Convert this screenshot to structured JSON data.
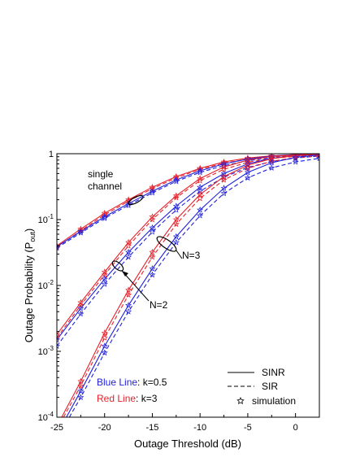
{
  "chart_data": {
    "type": "line",
    "xlabel": "Outage Threshold (dB)",
    "ylabel_main": "Outage Probability (P",
    "ylabel_sub": "out",
    "ylabel_close": ")",
    "xlim": [
      -25,
      2.5
    ],
    "ylim": [
      0.0001,
      1
    ],
    "yscale": "log",
    "x_ticks": [
      -25,
      -20,
      -15,
      -10,
      -5,
      0
    ],
    "x_tick_labels": [
      "-25",
      "-20",
      "-15",
      "-10",
      "-5",
      "0"
    ],
    "y_ticks": [
      0.0001,
      0.001,
      0.01,
      0.1,
      1
    ],
    "y_tick_labels": [
      {
        "base": "10",
        "exp": "-4"
      },
      {
        "base": "10",
        "exp": "-3"
      },
      {
        "base": "10",
        "exp": "-2"
      },
      {
        "base": "10",
        "exp": "-1"
      },
      {
        "base": "1",
        "exp": ""
      }
    ],
    "grid": false,
    "colors": {
      "blue": "#1f1fdc",
      "red": "#e8202a"
    },
    "annotations": {
      "single_channel": [
        "single",
        "channel"
      ],
      "n3": "N=3",
      "n2": "N=2"
    },
    "legend": {
      "placement": "bottom-right",
      "items": [
        {
          "label": "SINR",
          "style": "solid"
        },
        {
          "label": "SIR",
          "style": "dashed"
        },
        {
          "label": "simulation",
          "style": "marker"
        }
      ]
    },
    "color_key": {
      "blue_label": "Blue Line",
      "blue_value": ": k=0.5",
      "red_label": "Red Line",
      "red_value": ": k=3"
    },
    "sim_x": [
      -25,
      -22.5,
      -20,
      -17.5,
      -15,
      -12.5,
      -10,
      -7.5,
      -5,
      -2.5,
      0,
      2.5
    ],
    "series": [
      {
        "N": 1,
        "k": 3,
        "color": "red",
        "style": "solid",
        "x": [
          -25,
          -22.5,
          -20,
          -17.5,
          -15,
          -12.5,
          -10,
          -7.5,
          -5,
          -2.5,
          0,
          2.5
        ],
        "y": [
          0.04,
          0.072,
          0.125,
          0.2,
          0.31,
          0.45,
          0.6,
          0.75,
          0.86,
          0.93,
          0.97,
          0.99
        ]
      },
      {
        "N": 1,
        "k": 3,
        "color": "red",
        "style": "dashed",
        "x": [
          -25,
          -22.5,
          -20,
          -17.5,
          -15,
          -12.5,
          -10,
          -7.5,
          -5,
          -2.5,
          0,
          2.5
        ],
        "y": [
          0.038,
          0.068,
          0.118,
          0.19,
          0.295,
          0.43,
          0.58,
          0.72,
          0.83,
          0.9,
          0.94,
          0.96
        ]
      },
      {
        "N": 1,
        "k": 0.5,
        "color": "blue",
        "style": "solid",
        "x": [
          -25,
          -22.5,
          -20,
          -17.5,
          -15,
          -12.5,
          -10,
          -7.5,
          -5,
          -2.5,
          0,
          2.5
        ],
        "y": [
          0.039,
          0.066,
          0.11,
          0.175,
          0.27,
          0.4,
          0.55,
          0.7,
          0.83,
          0.92,
          0.97,
          0.99
        ]
      },
      {
        "N": 1,
        "k": 0.5,
        "color": "blue",
        "style": "dashed",
        "x": [
          -25,
          -22.5,
          -20,
          -17.5,
          -15,
          -12.5,
          -10,
          -7.5,
          -5,
          -2.5,
          0,
          2.5
        ],
        "y": [
          0.037,
          0.063,
          0.105,
          0.165,
          0.255,
          0.38,
          0.52,
          0.66,
          0.78,
          0.87,
          0.92,
          0.95
        ]
      },
      {
        "N": 2,
        "k": 3,
        "color": "red",
        "style": "solid",
        "x": [
          -25,
          -22.5,
          -20,
          -17.5,
          -15,
          -12.5,
          -10,
          -7.5,
          -5,
          -2.5,
          0,
          2.5
        ],
        "y": [
          0.0018,
          0.0055,
          0.016,
          0.045,
          0.11,
          0.23,
          0.42,
          0.63,
          0.8,
          0.91,
          0.96,
          0.985
        ]
      },
      {
        "N": 2,
        "k": 3,
        "color": "red",
        "style": "dashed",
        "x": [
          -25,
          -22.5,
          -20,
          -17.5,
          -15,
          -12.5,
          -10,
          -7.5,
          -5,
          -2.5,
          0,
          2.5
        ],
        "y": [
          0.0016,
          0.005,
          0.0145,
          0.04,
          0.1,
          0.215,
          0.39,
          0.58,
          0.74,
          0.85,
          0.91,
          0.94
        ]
      },
      {
        "N": 2,
        "k": 0.5,
        "color": "blue",
        "style": "solid",
        "x": [
          -25,
          -22.5,
          -20,
          -17.5,
          -15,
          -12.5,
          -10,
          -7.5,
          -5,
          -2.5,
          0,
          2.5
        ],
        "y": [
          0.0015,
          0.0045,
          0.0125,
          0.032,
          0.075,
          0.16,
          0.31,
          0.5,
          0.7,
          0.85,
          0.94,
          0.98
        ]
      },
      {
        "N": 2,
        "k": 0.5,
        "color": "blue",
        "style": "dashed",
        "x": [
          -25,
          -22.5,
          -20,
          -17.5,
          -15,
          -12.5,
          -10,
          -7.5,
          -5,
          -2.5,
          0,
          2.5
        ],
        "y": [
          0.0012,
          0.0037,
          0.0105,
          0.027,
          0.065,
          0.14,
          0.27,
          0.44,
          0.62,
          0.76,
          0.86,
          0.92
        ]
      },
      {
        "N": 3,
        "k": 3,
        "color": "red",
        "style": "solid",
        "x": [
          -24.5,
          -22.5,
          -20,
          -17.5,
          -15,
          -12.5,
          -10,
          -7.5,
          -5,
          -2.5,
          0,
          2.5
        ],
        "y": [
          0.0001,
          0.00035,
          0.0019,
          0.0085,
          0.032,
          0.1,
          0.24,
          0.45,
          0.67,
          0.84,
          0.94,
          0.98
        ]
      },
      {
        "N": 3,
        "k": 3,
        "color": "red",
        "style": "dashed",
        "x": [
          -24.3,
          -22.5,
          -20,
          -17.5,
          -15,
          -12.5,
          -10,
          -7.5,
          -5,
          -2.5,
          0,
          2.5
        ],
        "y": [
          0.0001,
          0.0003,
          0.0016,
          0.0072,
          0.027,
          0.085,
          0.21,
          0.4,
          0.6,
          0.77,
          0.87,
          0.92
        ]
      },
      {
        "N": 3,
        "k": 0.5,
        "color": "blue",
        "style": "solid",
        "x": [
          -24,
          -22.5,
          -20,
          -17.5,
          -15,
          -12.5,
          -10,
          -7.5,
          -5,
          -2.5,
          0,
          2.5
        ],
        "y": [
          0.0001,
          0.00025,
          0.0012,
          0.005,
          0.018,
          0.055,
          0.14,
          0.3,
          0.52,
          0.73,
          0.88,
          0.96
        ]
      },
      {
        "N": 3,
        "k": 0.5,
        "color": "blue",
        "style": "dashed",
        "x": [
          -23.7,
          -22.5,
          -20,
          -17.5,
          -15,
          -12.5,
          -10,
          -7.5,
          -5,
          -2.5,
          0,
          2.5
        ],
        "y": [
          0.0001,
          0.0002,
          0.00095,
          0.004,
          0.0145,
          0.045,
          0.115,
          0.25,
          0.43,
          0.61,
          0.75,
          0.85
        ]
      }
    ]
  }
}
